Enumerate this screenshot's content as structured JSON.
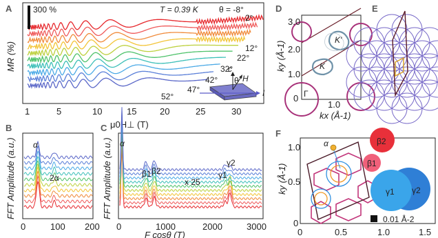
{
  "panels": {
    "A": {
      "label": "A",
      "scale_bar": "300 %",
      "temperature": "T = 0.39 K",
      "theta_first": "θ = -8°",
      "angles": [
        "2°",
        "12°",
        "22°",
        "32°",
        "42°",
        "47°",
        "52°"
      ],
      "ylabel": "MR (%)",
      "xlabel": "μ0H⊥ (T)",
      "xticks": [
        "1",
        "5",
        "10",
        "15",
        "20",
        "25",
        "30"
      ],
      "inset": {
        "c": "c",
        "theta": "θ",
        "H": "H",
        "I": "I"
      }
    },
    "B": {
      "label": "B",
      "ylabel": "FFT Amplitude (a.u.)",
      "xticks": [
        "0",
        "100",
        "200"
      ],
      "peaks": [
        "α",
        "2α"
      ]
    },
    "C": {
      "label": "C",
      "ylabel": "FFT Amplitude (a.u.)",
      "xlabel": "F cosθ (T)",
      "xticks": [
        "0",
        "1000",
        "2000",
        "3000"
      ],
      "peaks": [
        "α",
        "β1",
        "β2",
        "γ1",
        "γ2"
      ],
      "multiplier": "x 25"
    },
    "D": {
      "label": "D",
      "ylabel": "ky (Å-1)",
      "xlabel": "kx (Å-1)",
      "yticks": [
        "0",
        "1.0",
        "2.0",
        "3.0"
      ],
      "xticks": [
        "1.0"
      ],
      "points": [
        "K'",
        "K",
        "Γ"
      ]
    },
    "E": {
      "label": "E"
    },
    "F": {
      "label": "F",
      "ylabel": "ky (Å-1)",
      "xlabel": "kx (Å-1)",
      "yticks": [
        "0",
        "0.5",
        "1.0"
      ],
      "xticks": [
        "0",
        "0.5",
        "1.0",
        "1.5"
      ],
      "pockets": [
        "α",
        "β2",
        "β1",
        "γ1",
        "γ2"
      ],
      "scale": "0.01 Å-2"
    }
  },
  "colors": {
    "traces": [
      "#e6262b",
      "#ef5a5a",
      "#f08a3a",
      "#f3c437",
      "#bcd03c",
      "#4fc26b",
      "#3cbfb8",
      "#4aa9e6",
      "#5a7fd8",
      "#5a67c8"
    ],
    "hex_pink": "#c2357a",
    "purple": "#7a6cc9",
    "red_pocket": "#e8303a",
    "blue_pocket": "#2f8fe0"
  }
}
